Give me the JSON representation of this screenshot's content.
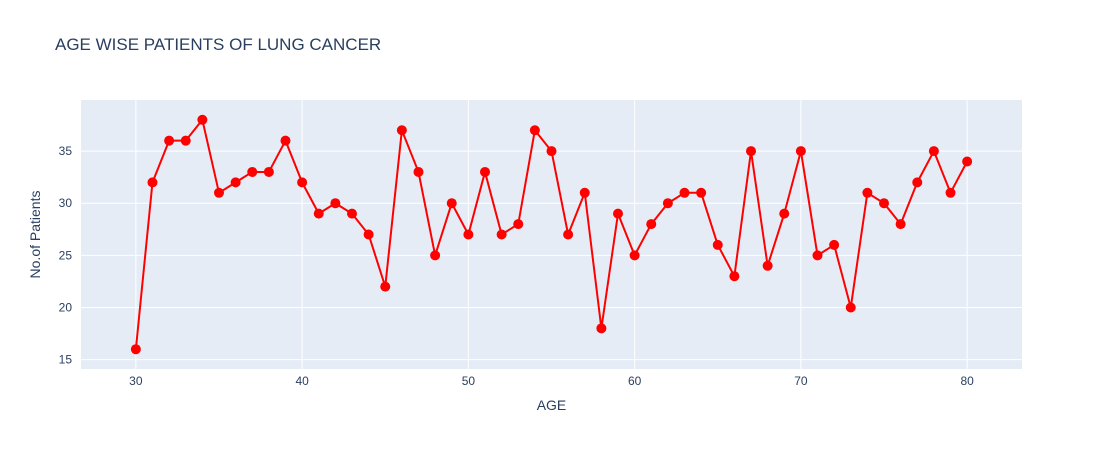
{
  "chart_data": {
    "type": "line",
    "title": "AGE WISE PATIENTS OF LUNG CANCER",
    "xlabel": "AGE",
    "ylabel": "No.of Patients",
    "xlim": [
      26.7,
      83.3
    ],
    "ylim": [
      14.1,
      39.9
    ],
    "xticks": [
      30,
      40,
      50,
      60,
      70,
      80
    ],
    "yticks": [
      15,
      20,
      25,
      30,
      35
    ],
    "grid": true,
    "legend": "none",
    "line_color": "#ff0000",
    "background_color": "#e5ecf6",
    "series": [
      {
        "x": [
          30,
          31,
          32,
          33,
          34,
          35,
          36,
          37,
          38,
          39,
          40,
          41,
          42,
          43,
          44,
          45,
          46,
          47,
          48,
          49,
          50,
          51,
          52,
          53,
          54,
          55,
          56,
          57,
          58,
          59,
          60,
          61,
          62,
          63,
          64,
          65,
          66,
          67,
          68,
          69,
          70,
          71,
          72,
          73,
          74,
          75,
          76,
          77,
          78,
          79,
          80
        ],
        "y": [
          16,
          32,
          36,
          36,
          38,
          31,
          32,
          33,
          33,
          36,
          32,
          29,
          30,
          29,
          27,
          22,
          37,
          33,
          25,
          30,
          27,
          33,
          27,
          28,
          37,
          35,
          27,
          31,
          18,
          29,
          25,
          28,
          30,
          31,
          31,
          26,
          23,
          35,
          24,
          29,
          35,
          25,
          26,
          20,
          31,
          30,
          28,
          32,
          35,
          31,
          34
        ]
      }
    ]
  }
}
